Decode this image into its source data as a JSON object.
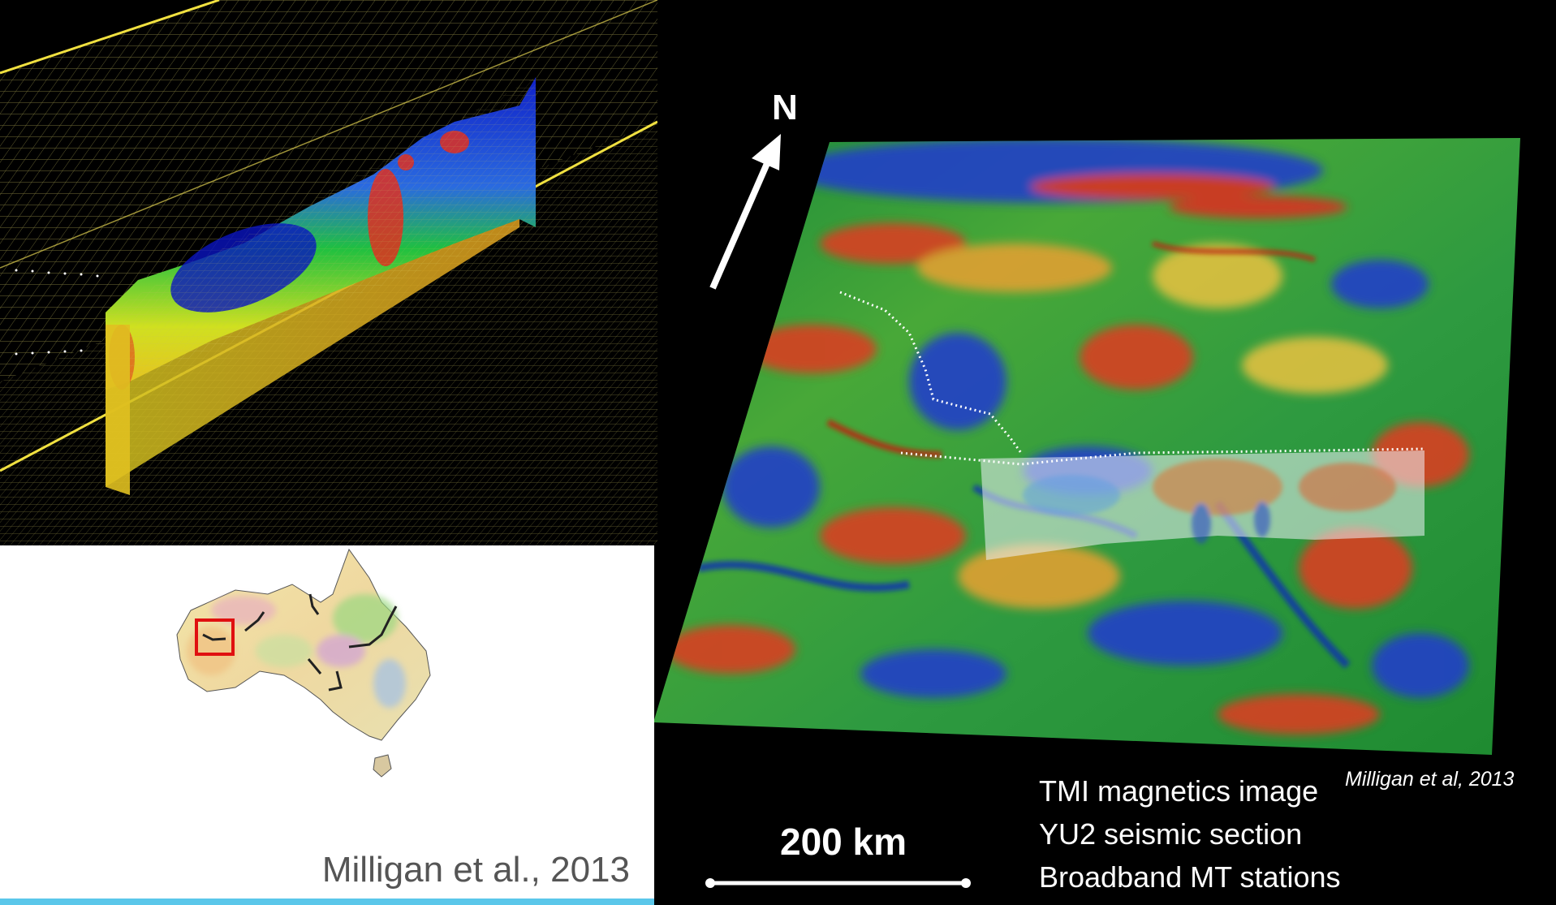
{
  "north_label": "N",
  "scale_bar": {
    "label": "200 km"
  },
  "legend": {
    "items": [
      "TMI magnetics image",
      "YU2 seismic section",
      "Broadband MT stations"
    ]
  },
  "citations": {
    "map": "Milligan et al, 2013",
    "inset": "Milligan et al., 2013"
  },
  "colors": {
    "background": "#000000",
    "grid": "#d8d26a",
    "accent_bar": "#5bc7ea",
    "inset_box": "#e01010"
  }
}
